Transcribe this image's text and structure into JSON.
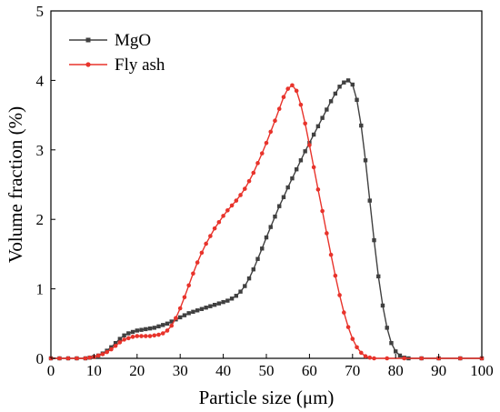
{
  "chart_data": {
    "type": "line",
    "xlabel": "Particle size (μm)",
    "ylabel": "Volume fraction (%)",
    "xlim": [
      0,
      100
    ],
    "ylim": [
      0,
      5
    ],
    "xticks": [
      0,
      10,
      20,
      30,
      40,
      50,
      60,
      70,
      80,
      90,
      100
    ],
    "yticks": [
      0,
      1,
      2,
      3,
      4,
      5
    ],
    "grid": false,
    "legend_position": "top-left",
    "series": [
      {
        "name": "MgO",
        "color": "#404040",
        "marker": "square",
        "points": [
          [
            0,
            0
          ],
          [
            2,
            0
          ],
          [
            4,
            0
          ],
          [
            6,
            0
          ],
          [
            8,
            0
          ],
          [
            9,
            0.01
          ],
          [
            10,
            0.02
          ],
          [
            11,
            0.04
          ],
          [
            12,
            0.07
          ],
          [
            13,
            0.11
          ],
          [
            14,
            0.16
          ],
          [
            15,
            0.22
          ],
          [
            16,
            0.28
          ],
          [
            17,
            0.33
          ],
          [
            18,
            0.36
          ],
          [
            19,
            0.38
          ],
          [
            20,
            0.4
          ],
          [
            21,
            0.41
          ],
          [
            22,
            0.42
          ],
          [
            23,
            0.43
          ],
          [
            24,
            0.44
          ],
          [
            25,
            0.46
          ],
          [
            26,
            0.48
          ],
          [
            27,
            0.5
          ],
          [
            28,
            0.53
          ],
          [
            29,
            0.56
          ],
          [
            30,
            0.59
          ],
          [
            31,
            0.62
          ],
          [
            32,
            0.65
          ],
          [
            33,
            0.67
          ],
          [
            34,
            0.69
          ],
          [
            35,
            0.71
          ],
          [
            36,
            0.73
          ],
          [
            37,
            0.75
          ],
          [
            38,
            0.77
          ],
          [
            39,
            0.79
          ],
          [
            40,
            0.81
          ],
          [
            41,
            0.83
          ],
          [
            42,
            0.86
          ],
          [
            43,
            0.9
          ],
          [
            44,
            0.96
          ],
          [
            45,
            1.04
          ],
          [
            46,
            1.15
          ],
          [
            47,
            1.28
          ],
          [
            48,
            1.43
          ],
          [
            49,
            1.58
          ],
          [
            50,
            1.74
          ],
          [
            51,
            1.89
          ],
          [
            52,
            2.04
          ],
          [
            53,
            2.19
          ],
          [
            54,
            2.32
          ],
          [
            55,
            2.46
          ],
          [
            56,
            2.59
          ],
          [
            57,
            2.72
          ],
          [
            58,
            2.85
          ],
          [
            59,
            2.98
          ],
          [
            60,
            3.1
          ],
          [
            61,
            3.22
          ],
          [
            62,
            3.34
          ],
          [
            63,
            3.46
          ],
          [
            64,
            3.58
          ],
          [
            65,
            3.7
          ],
          [
            66,
            3.81
          ],
          [
            67,
            3.91
          ],
          [
            68,
            3.97
          ],
          [
            69,
            4.0
          ],
          [
            70,
            3.94
          ],
          [
            71,
            3.72
          ],
          [
            72,
            3.35
          ],
          [
            73,
            2.85
          ],
          [
            74,
            2.27
          ],
          [
            75,
            1.7
          ],
          [
            76,
            1.18
          ],
          [
            77,
            0.76
          ],
          [
            78,
            0.44
          ],
          [
            79,
            0.22
          ],
          [
            80,
            0.1
          ],
          [
            81,
            0.04
          ],
          [
            82,
            0.01
          ],
          [
            83,
            0
          ],
          [
            86,
            0
          ],
          [
            90,
            0
          ],
          [
            95,
            0
          ],
          [
            100,
            0
          ]
        ]
      },
      {
        "name": "Fly ash",
        "color": "#e8332b",
        "marker": "circle",
        "points": [
          [
            0,
            0
          ],
          [
            2,
            0
          ],
          [
            4,
            0
          ],
          [
            6,
            0
          ],
          [
            8,
            0
          ],
          [
            9,
            0.01
          ],
          [
            10,
            0.02
          ],
          [
            11,
            0.04
          ],
          [
            12,
            0.06
          ],
          [
            13,
            0.09
          ],
          [
            14,
            0.13
          ],
          [
            15,
            0.18
          ],
          [
            16,
            0.23
          ],
          [
            17,
            0.27
          ],
          [
            18,
            0.29
          ],
          [
            19,
            0.31
          ],
          [
            20,
            0.32
          ],
          [
            21,
            0.32
          ],
          [
            22,
            0.32
          ],
          [
            23,
            0.32
          ],
          [
            24,
            0.33
          ],
          [
            25,
            0.34
          ],
          [
            26,
            0.36
          ],
          [
            27,
            0.4
          ],
          [
            28,
            0.47
          ],
          [
            29,
            0.58
          ],
          [
            30,
            0.72
          ],
          [
            31,
            0.88
          ],
          [
            32,
            1.05
          ],
          [
            33,
            1.22
          ],
          [
            34,
            1.38
          ],
          [
            35,
            1.52
          ],
          [
            36,
            1.65
          ],
          [
            37,
            1.76
          ],
          [
            38,
            1.87
          ],
          [
            39,
            1.96
          ],
          [
            40,
            2.05
          ],
          [
            41,
            2.13
          ],
          [
            42,
            2.2
          ],
          [
            43,
            2.27
          ],
          [
            44,
            2.35
          ],
          [
            45,
            2.44
          ],
          [
            46,
            2.55
          ],
          [
            47,
            2.67
          ],
          [
            48,
            2.81
          ],
          [
            49,
            2.95
          ],
          [
            50,
            3.1
          ],
          [
            51,
            3.26
          ],
          [
            52,
            3.42
          ],
          [
            53,
            3.59
          ],
          [
            54,
            3.76
          ],
          [
            55,
            3.88
          ],
          [
            56,
            3.93
          ],
          [
            57,
            3.85
          ],
          [
            58,
            3.65
          ],
          [
            59,
            3.38
          ],
          [
            60,
            3.07
          ],
          [
            61,
            2.75
          ],
          [
            62,
            2.43
          ],
          [
            63,
            2.12
          ],
          [
            64,
            1.8
          ],
          [
            65,
            1.49
          ],
          [
            66,
            1.19
          ],
          [
            67,
            0.91
          ],
          [
            68,
            0.66
          ],
          [
            69,
            0.45
          ],
          [
            70,
            0.28
          ],
          [
            71,
            0.16
          ],
          [
            72,
            0.08
          ],
          [
            73,
            0.03
          ],
          [
            74,
            0.01
          ],
          [
            75,
            0
          ],
          [
            78,
            0
          ],
          [
            82,
            0
          ],
          [
            86,
            0
          ],
          [
            90,
            0
          ],
          [
            95,
            0
          ],
          [
            100,
            0
          ]
        ]
      }
    ]
  }
}
